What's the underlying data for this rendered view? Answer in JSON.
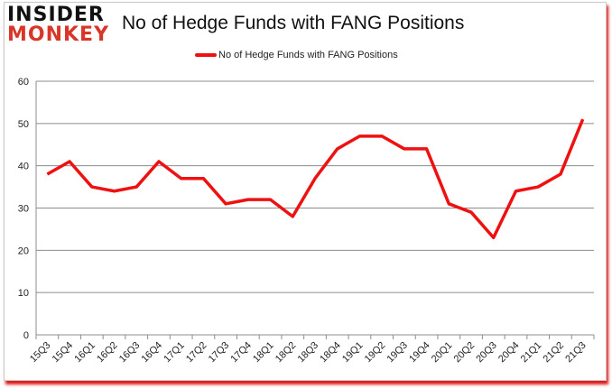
{
  "logo": {
    "line1": "INSIDER",
    "line2": "MONKEY"
  },
  "colors": {
    "series": "#ee1111",
    "grid": "#8c8c8c",
    "logo_red": "#d9362a"
  },
  "chart_data": {
    "type": "line",
    "title": "No of Hedge Funds with FANG Positions",
    "xlabel": "",
    "ylabel": "",
    "ylim": [
      0,
      60
    ],
    "yticks": [
      0,
      10,
      20,
      30,
      40,
      50,
      60
    ],
    "grid": true,
    "legend_position": "top",
    "categories": [
      "15Q3",
      "15Q4",
      "16Q1",
      "16Q2",
      "16Q3",
      "16Q4",
      "17Q1",
      "17Q2",
      "17Q3",
      "17Q4",
      "18Q1",
      "18Q2",
      "18Q3",
      "18Q4",
      "19Q1",
      "19Q2",
      "19Q3",
      "19Q4",
      "20Q1",
      "20Q2",
      "20Q3",
      "20Q4",
      "21Q1",
      "21Q2",
      "21Q3"
    ],
    "series": [
      {
        "name": "No of Hedge Funds with FANG Positions",
        "values": [
          38,
          41,
          35,
          34,
          35,
          41,
          37,
          37,
          31,
          32,
          32,
          28,
          37,
          44,
          47,
          47,
          44,
          44,
          31,
          29,
          23,
          34,
          35,
          38,
          51
        ]
      }
    ]
  }
}
